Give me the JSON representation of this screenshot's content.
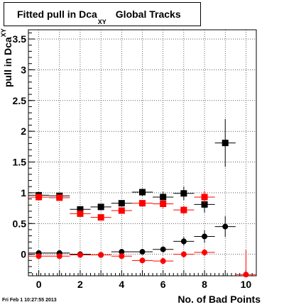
{
  "chart_data": {
    "type": "scatter",
    "title": "Fitted pull in Dca",
    "title_subscript": "XY",
    "title_suffix": "Global Tracks",
    "xlabel": "No. of Bad Points",
    "ylabel": "pull in Dca",
    "ylabel_subscript": "XY",
    "xlim": [
      -0.5,
      10.5
    ],
    "ylim": [
      -0.35,
      3.65
    ],
    "xticks": [
      "0",
      "2",
      "4",
      "6",
      "8",
      "10"
    ],
    "yticks": [
      "0",
      "0.5",
      "1",
      "1.5",
      "2",
      "2.5",
      "3",
      "3.5"
    ],
    "grid": true,
    "colors": {
      "black": "#000000",
      "red": "#ff0000"
    },
    "series": [
      {
        "marker": "square",
        "color": "#000000",
        "points": [
          {
            "x": 0,
            "y": 0.96,
            "err": 0.04
          },
          {
            "x": 1,
            "y": 0.95,
            "err": 0.04
          },
          {
            "x": 2,
            "y": 0.73,
            "err": 0.04
          },
          {
            "x": 3,
            "y": 0.77,
            "err": 0.04
          },
          {
            "x": 4,
            "y": 0.83,
            "err": 0.05
          },
          {
            "x": 5,
            "y": 1.01,
            "err": 0.06
          },
          {
            "x": 6,
            "y": 0.93,
            "err": 0.09
          },
          {
            "x": 7,
            "y": 0.99,
            "err": 0.11
          },
          {
            "x": 8,
            "y": 0.81,
            "err": 0.13
          },
          {
            "x": 9,
            "y": 1.81,
            "err": 0.39
          }
        ]
      },
      {
        "marker": "square",
        "color": "#ff0000",
        "points": [
          {
            "x": 0,
            "y": 0.93,
            "err": 0.04
          },
          {
            "x": 1,
            "y": 0.92,
            "err": 0.04
          },
          {
            "x": 2,
            "y": 0.66,
            "err": 0.04
          },
          {
            "x": 3,
            "y": 0.6,
            "err": 0.04
          },
          {
            "x": 4,
            "y": 0.71,
            "err": 0.04
          },
          {
            "x": 5,
            "y": 0.83,
            "err": 0.05
          },
          {
            "x": 6,
            "y": 0.82,
            "err": 0.07
          },
          {
            "x": 7,
            "y": 0.72,
            "err": 0.07
          },
          {
            "x": 8,
            "y": 0.93,
            "err": 0.1
          }
        ]
      },
      {
        "marker": "circle",
        "color": "#000000",
        "points": [
          {
            "x": 0,
            "y": 0.02,
            "err": 0.03
          },
          {
            "x": 1,
            "y": 0.02,
            "err": 0.03
          },
          {
            "x": 2,
            "y": 0.0,
            "err": 0.03
          },
          {
            "x": 3,
            "y": -0.01,
            "err": 0.03
          },
          {
            "x": 4,
            "y": 0.04,
            "err": 0.03
          },
          {
            "x": 5,
            "y": 0.04,
            "err": 0.04
          },
          {
            "x": 6,
            "y": 0.08,
            "err": 0.05
          },
          {
            "x": 7,
            "y": 0.21,
            "err": 0.07
          },
          {
            "x": 8,
            "y": 0.29,
            "err": 0.1
          },
          {
            "x": 9,
            "y": 0.45,
            "err": 0.17
          }
        ]
      },
      {
        "marker": "circle",
        "color": "#ff0000",
        "points": [
          {
            "x": 0,
            "y": -0.03,
            "err": 0.03
          },
          {
            "x": 1,
            "y": -0.03,
            "err": 0.03
          },
          {
            "x": 2,
            "y": -0.01,
            "err": 0.03
          },
          {
            "x": 3,
            "y": -0.01,
            "err": 0.03
          },
          {
            "x": 4,
            "y": -0.03,
            "err": 0.03
          },
          {
            "x": 5,
            "y": -0.1,
            "err": 0.04
          },
          {
            "x": 6,
            "y": -0.11,
            "err": 0.05
          },
          {
            "x": 7,
            "y": 0.0,
            "err": 0.05
          },
          {
            "x": 8,
            "y": 0.03,
            "err": 0.06
          },
          {
            "x": 10,
            "y": -0.33,
            "err": 0.4
          }
        ]
      }
    ]
  },
  "timestamp": "Fri Feb  1 10:27:55 2013"
}
